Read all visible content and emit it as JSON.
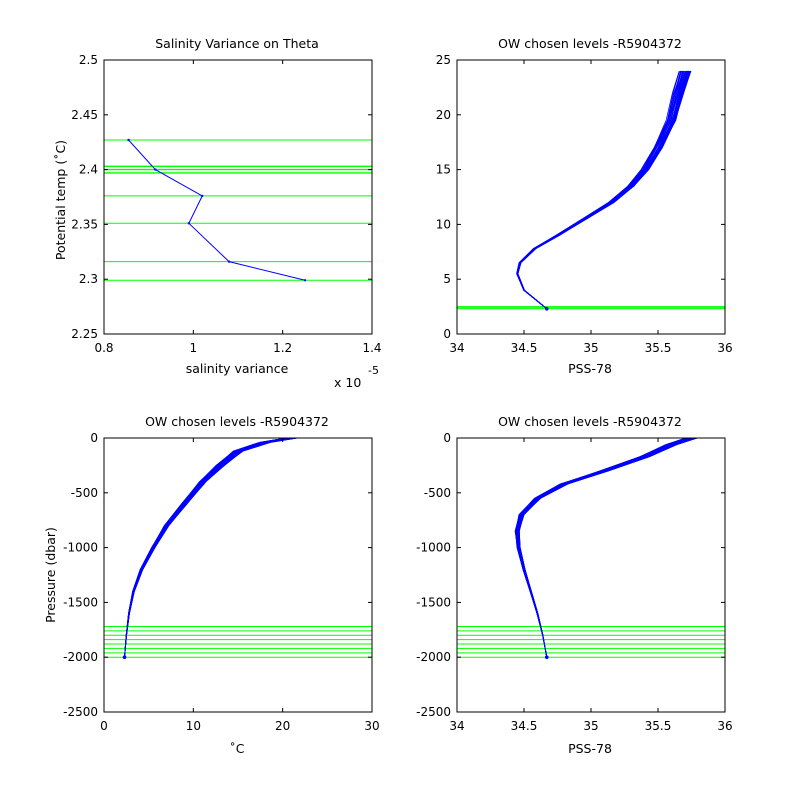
{
  "chart_data": [
    {
      "id": "p1",
      "type": "line",
      "title": "Salinity Variance on Theta",
      "xlabel": "salinity variance",
      "ylabel": "Potential temp (˚C)",
      "x_multiplier_label": "x 10",
      "x_multiplier_exponent": "-5",
      "xlim": [
        0.8,
        1.4
      ],
      "ylim": [
        2.25,
        2.5
      ],
      "xticks": [
        0.8,
        1,
        1.2,
        1.4
      ],
      "yticks": [
        2.25,
        2.3,
        2.35,
        2.4,
        2.45,
        2.5
      ],
      "series": [
        {
          "color": "#0000ff",
          "x": [
            0.855,
            0.915,
            1.02,
            0.99,
            1.08,
            1.25
          ],
          "y": [
            2.427,
            2.4,
            2.376,
            2.351,
            2.316,
            2.299
          ]
        }
      ],
      "hlines": {
        "color": "#00ff00",
        "values": [
          2.427,
          2.403,
          2.4,
          2.397,
          2.376,
          2.351,
          2.316,
          2.299
        ]
      }
    },
    {
      "id": "p2",
      "type": "line",
      "title": "OW chosen levels -R5904372",
      "xlabel": "PSS-78",
      "ylabel": "",
      "xlim": [
        34,
        36
      ],
      "ylim": [
        0,
        25
      ],
      "xticks": [
        34,
        34.5,
        35,
        35.5,
        36
      ],
      "yticks": [
        0,
        5,
        10,
        15,
        20,
        25
      ],
      "profile": {
        "color": "#0000ff",
        "x": [
          34.67,
          34.6,
          34.5,
          34.45,
          34.47,
          34.58,
          34.75,
          34.95,
          35.15,
          35.3,
          35.4,
          35.5,
          35.6,
          35.65,
          35.7
        ],
        "y": [
          2.3,
          3,
          4,
          5.5,
          6.5,
          7.8,
          9,
          10.5,
          12,
          13.5,
          15,
          17,
          19.5,
          22,
          24
        ]
      },
      "hlines": {
        "color": "#00ff00",
        "values": [
          2.3,
          2.4,
          2.5
        ]
      }
    },
    {
      "id": "p3",
      "type": "line",
      "title": "OW chosen levels -R5904372",
      "xlabel": "˚C",
      "ylabel": "Pressure (dbar)",
      "xlim": [
        0,
        30
      ],
      "ylim": [
        -2500,
        0
      ],
      "xticks": [
        0,
        10,
        20,
        30
      ],
      "yticks": [
        -2500,
        -2000,
        -1500,
        -1000,
        -500,
        0
      ],
      "profile": {
        "color": "#0000ff",
        "x": [
          2.3,
          2.5,
          2.8,
          3.3,
          4.2,
          5.5,
          7,
          9,
          11,
          13,
          15,
          18,
          21
        ],
        "y": [
          -2000,
          -1800,
          -1600,
          -1400,
          -1200,
          -1000,
          -800,
          -600,
          -400,
          -250,
          -120,
          -40,
          0
        ]
      },
      "hlines": {
        "color": "#00ff00",
        "values": [
          -1720,
          -1760,
          -1800,
          -1840,
          -1880,
          -1920,
          -1960,
          -2000
        ]
      }
    },
    {
      "id": "p4",
      "type": "line",
      "title": "OW chosen levels -R5904372",
      "xlabel": "PSS-78",
      "ylabel": "",
      "xlim": [
        34,
        36
      ],
      "ylim": [
        -2500,
        0
      ],
      "xticks": [
        34,
        34.5,
        35,
        35.5,
        36
      ],
      "yticks": [
        -2500,
        -2000,
        -1500,
        -1000,
        -500,
        0
      ],
      "profile": {
        "color": "#0000ff",
        "x": [
          34.67,
          34.64,
          34.6,
          34.55,
          34.5,
          34.46,
          34.45,
          34.48,
          34.6,
          34.8,
          35.1,
          35.4,
          35.6,
          35.75
        ],
        "y": [
          -2000,
          -1800,
          -1600,
          -1400,
          -1200,
          -1000,
          -850,
          -700,
          -550,
          -420,
          -300,
          -170,
          -60,
          0
        ]
      },
      "hlines": {
        "color": "#00ff00",
        "values": [
          -1720,
          -1760,
          -1800,
          -1840,
          -1880,
          -1920,
          -1960,
          -2000
        ]
      }
    }
  ]
}
